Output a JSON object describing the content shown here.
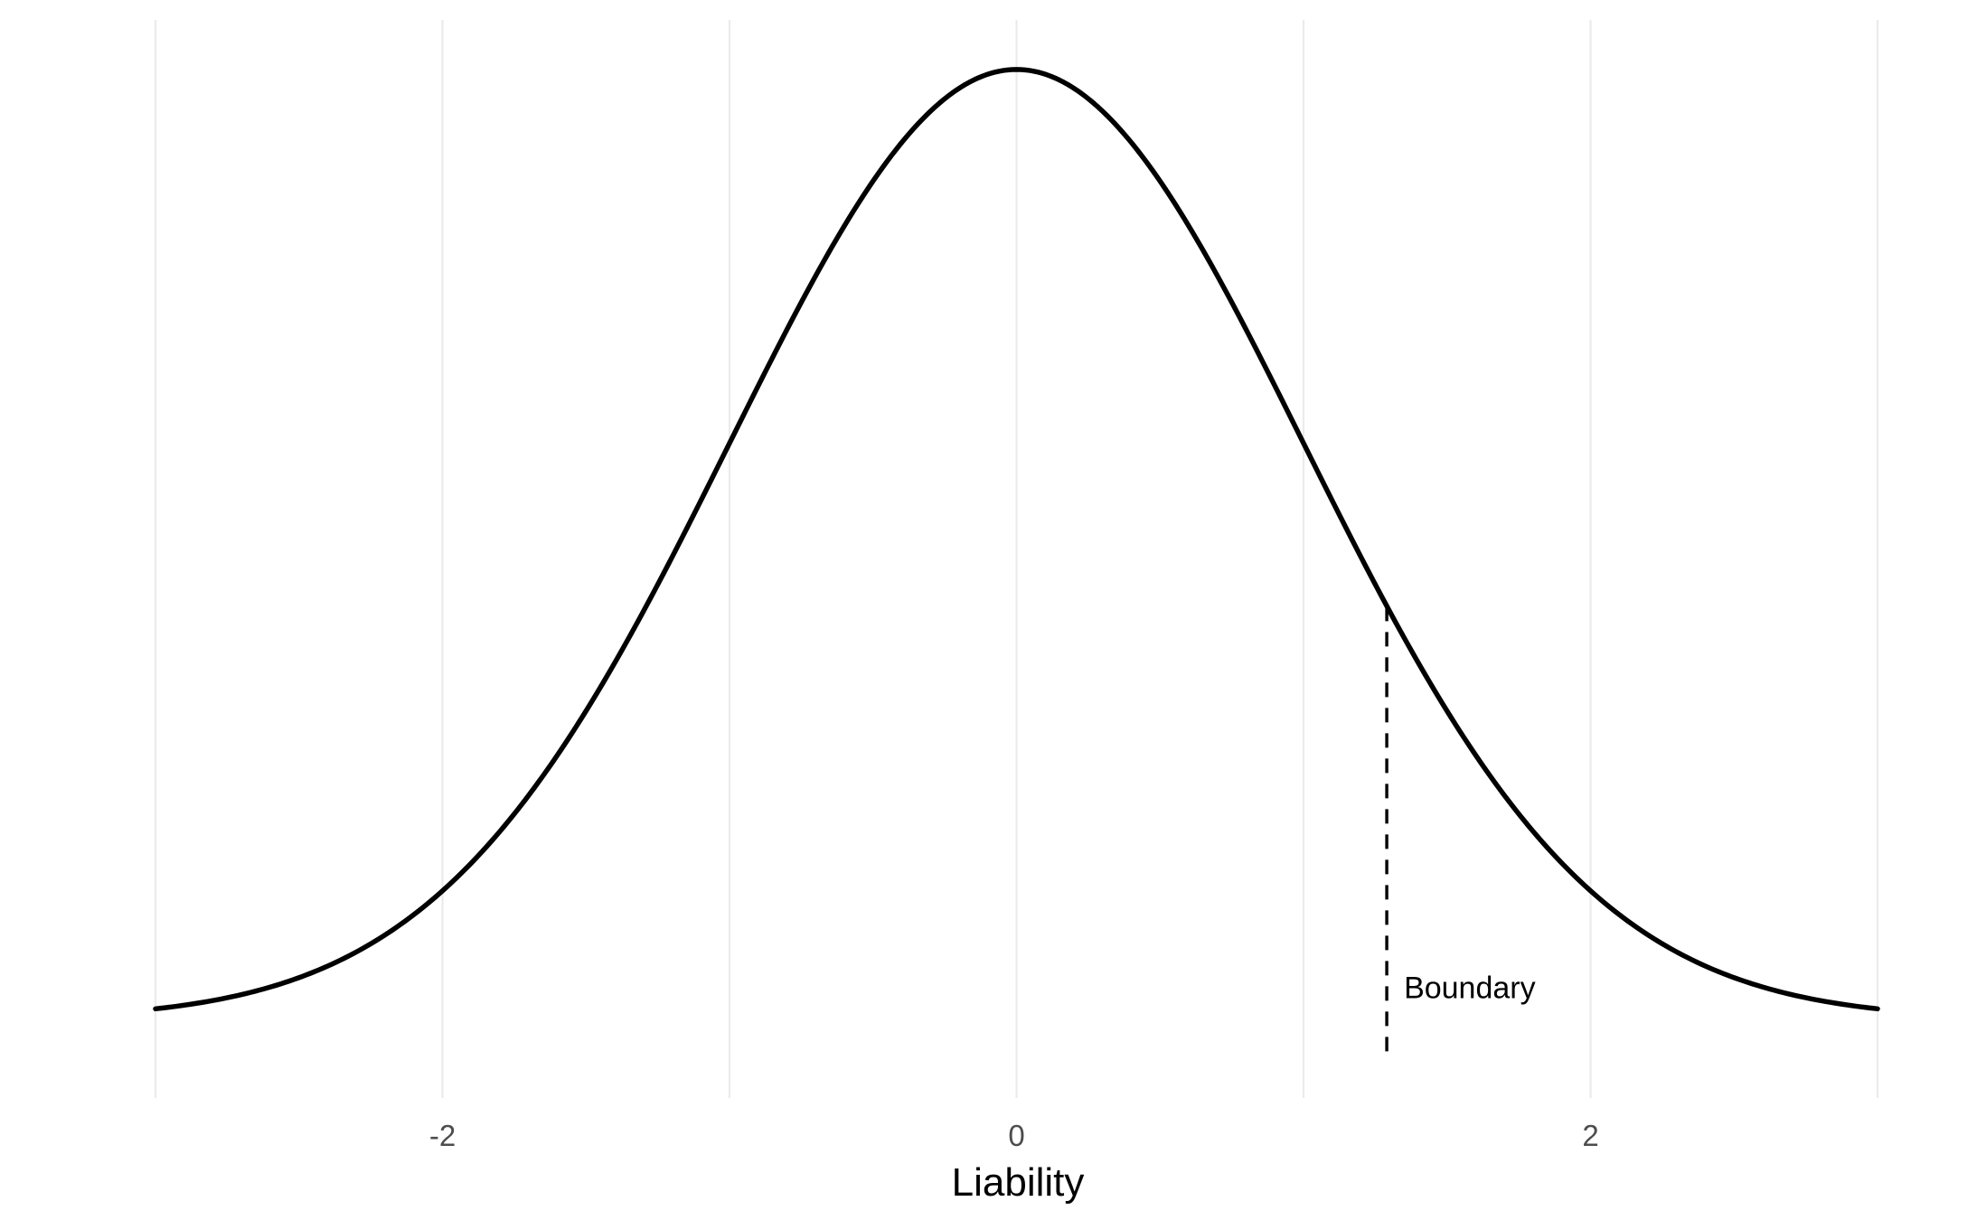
{
  "chart_data": {
    "type": "line",
    "title": "",
    "xlabel": "Liability",
    "ylabel": "",
    "xlim": [
      -3,
      3
    ],
    "ylim": [
      0,
      0.4
    ],
    "x_ticks": [
      -2,
      0,
      2
    ],
    "x_tick_labels": [
      "-2",
      "0",
      "2"
    ],
    "x_minor_gridlines": [
      -3,
      -1,
      1,
      3
    ],
    "grid": "vertical only",
    "legend": "none",
    "series": [
      {
        "distribution": "standard normal density",
        "mean": 0,
        "sd": 1,
        "x": [
          -3.0,
          -2.75,
          -2.5,
          -2.25,
          -2.0,
          -1.75,
          -1.5,
          -1.25,
          -1.0,
          -0.75,
          -0.5,
          -0.25,
          0.0,
          0.25,
          0.5,
          0.75,
          1.0,
          1.25,
          1.5,
          1.75,
          2.0,
          2.25,
          2.5,
          2.75,
          3.0
        ],
        "y": [
          0.0044,
          0.0091,
          0.0175,
          0.0317,
          0.054,
          0.0863,
          0.1295,
          0.1826,
          0.242,
          0.3011,
          0.3521,
          0.3867,
          0.3989,
          0.3867,
          0.3521,
          0.3011,
          0.242,
          0.1826,
          0.1295,
          0.0863,
          0.054,
          0.0317,
          0.0175,
          0.0091,
          0.0044
        ],
        "color": "#000000"
      }
    ],
    "annotations": [
      {
        "type": "dashed-vline",
        "x": 1.29,
        "y_top": 0.1733,
        "y_bottom": -0.0155,
        "label": "Boundary",
        "label_y": 0.0135
      }
    ],
    "colors": {
      "curve": "#000000",
      "grid": "#ebebeb",
      "tick_text": "#4d4d4d",
      "background": "#ffffff"
    }
  }
}
